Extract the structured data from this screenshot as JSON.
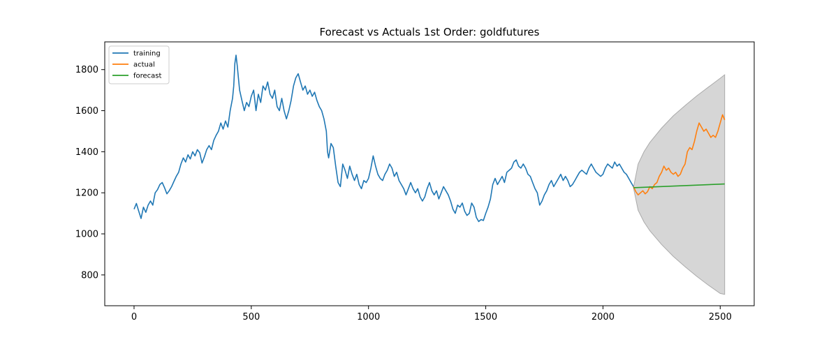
{
  "chart_data": {
    "type": "line",
    "title": "Forecast vs Actuals 1st Order: goldfutures",
    "xlabel": "",
    "ylabel": "",
    "xlim": [
      -125,
      2645
    ],
    "ylim": [
      650,
      1935
    ],
    "x_ticks": [
      0,
      500,
      1000,
      1500,
      2000,
      2500
    ],
    "y_ticks": [
      800,
      1000,
      1200,
      1400,
      1600,
      1800
    ],
    "grid": false,
    "legend_position": "top-left",
    "series": [
      {
        "name": "training",
        "color": "#1f77b4",
        "points": [
          [
            0,
            1120
          ],
          [
            10,
            1148
          ],
          [
            20,
            1110
          ],
          [
            30,
            1075
          ],
          [
            40,
            1130
          ],
          [
            50,
            1105
          ],
          [
            60,
            1140
          ],
          [
            70,
            1160
          ],
          [
            80,
            1140
          ],
          [
            90,
            1200
          ],
          [
            100,
            1215
          ],
          [
            110,
            1240
          ],
          [
            120,
            1250
          ],
          [
            130,
            1225
          ],
          [
            140,
            1195
          ],
          [
            150,
            1210
          ],
          [
            160,
            1230
          ],
          [
            170,
            1255
          ],
          [
            180,
            1280
          ],
          [
            190,
            1300
          ],
          [
            200,
            1340
          ],
          [
            210,
            1370
          ],
          [
            220,
            1350
          ],
          [
            230,
            1385
          ],
          [
            240,
            1365
          ],
          [
            250,
            1400
          ],
          [
            260,
            1380
          ],
          [
            270,
            1410
          ],
          [
            280,
            1395
          ],
          [
            290,
            1345
          ],
          [
            300,
            1375
          ],
          [
            310,
            1410
          ],
          [
            320,
            1430
          ],
          [
            330,
            1410
          ],
          [
            340,
            1455
          ],
          [
            350,
            1480
          ],
          [
            360,
            1500
          ],
          [
            370,
            1540
          ],
          [
            380,
            1510
          ],
          [
            390,
            1550
          ],
          [
            400,
            1520
          ],
          [
            410,
            1600
          ],
          [
            420,
            1660
          ],
          [
            425,
            1720
          ],
          [
            430,
            1830
          ],
          [
            435,
            1870
          ],
          [
            440,
            1820
          ],
          [
            445,
            1760
          ],
          [
            450,
            1700
          ],
          [
            460,
            1650
          ],
          [
            470,
            1600
          ],
          [
            480,
            1640
          ],
          [
            490,
            1620
          ],
          [
            500,
            1670
          ],
          [
            510,
            1700
          ],
          [
            520,
            1600
          ],
          [
            530,
            1680
          ],
          [
            540,
            1640
          ],
          [
            550,
            1720
          ],
          [
            560,
            1700
          ],
          [
            570,
            1740
          ],
          [
            580,
            1680
          ],
          [
            590,
            1660
          ],
          [
            600,
            1700
          ],
          [
            610,
            1620
          ],
          [
            620,
            1600
          ],
          [
            630,
            1660
          ],
          [
            640,
            1600
          ],
          [
            650,
            1560
          ],
          [
            660,
            1600
          ],
          [
            670,
            1650
          ],
          [
            680,
            1720
          ],
          [
            690,
            1760
          ],
          [
            700,
            1780
          ],
          [
            710,
            1740
          ],
          [
            720,
            1700
          ],
          [
            730,
            1720
          ],
          [
            740,
            1680
          ],
          [
            750,
            1700
          ],
          [
            760,
            1670
          ],
          [
            770,
            1690
          ],
          [
            780,
            1650
          ],
          [
            790,
            1620
          ],
          [
            800,
            1600
          ],
          [
            810,
            1560
          ],
          [
            820,
            1500
          ],
          [
            825,
            1400
          ],
          [
            830,
            1370
          ],
          [
            840,
            1440
          ],
          [
            850,
            1420
          ],
          [
            860,
            1330
          ],
          [
            870,
            1250
          ],
          [
            880,
            1230
          ],
          [
            890,
            1340
          ],
          [
            900,
            1310
          ],
          [
            910,
            1270
          ],
          [
            920,
            1330
          ],
          [
            930,
            1290
          ],
          [
            940,
            1260
          ],
          [
            950,
            1290
          ],
          [
            960,
            1240
          ],
          [
            970,
            1220
          ],
          [
            980,
            1260
          ],
          [
            990,
            1250
          ],
          [
            1000,
            1270
          ],
          [
            1010,
            1320
          ],
          [
            1020,
            1380
          ],
          [
            1030,
            1330
          ],
          [
            1040,
            1290
          ],
          [
            1050,
            1270
          ],
          [
            1060,
            1260
          ],
          [
            1070,
            1290
          ],
          [
            1080,
            1310
          ],
          [
            1090,
            1340
          ],
          [
            1100,
            1320
          ],
          [
            1110,
            1280
          ],
          [
            1120,
            1300
          ],
          [
            1130,
            1260
          ],
          [
            1140,
            1240
          ],
          [
            1150,
            1220
          ],
          [
            1160,
            1190
          ],
          [
            1170,
            1220
          ],
          [
            1180,
            1250
          ],
          [
            1190,
            1220
          ],
          [
            1200,
            1200
          ],
          [
            1210,
            1220
          ],
          [
            1220,
            1180
          ],
          [
            1230,
            1160
          ],
          [
            1240,
            1180
          ],
          [
            1250,
            1220
          ],
          [
            1260,
            1250
          ],
          [
            1270,
            1210
          ],
          [
            1280,
            1190
          ],
          [
            1290,
            1210
          ],
          [
            1300,
            1170
          ],
          [
            1310,
            1200
          ],
          [
            1320,
            1230
          ],
          [
            1330,
            1210
          ],
          [
            1340,
            1190
          ],
          [
            1350,
            1160
          ],
          [
            1360,
            1120
          ],
          [
            1370,
            1100
          ],
          [
            1380,
            1140
          ],
          [
            1390,
            1130
          ],
          [
            1400,
            1150
          ],
          [
            1410,
            1110
          ],
          [
            1420,
            1090
          ],
          [
            1430,
            1100
          ],
          [
            1440,
            1150
          ],
          [
            1450,
            1130
          ],
          [
            1460,
            1080
          ],
          [
            1470,
            1060
          ],
          [
            1480,
            1070
          ],
          [
            1490,
            1065
          ],
          [
            1500,
            1100
          ],
          [
            1510,
            1130
          ],
          [
            1520,
            1170
          ],
          [
            1530,
            1240
          ],
          [
            1540,
            1270
          ],
          [
            1550,
            1240
          ],
          [
            1560,
            1260
          ],
          [
            1570,
            1280
          ],
          [
            1580,
            1250
          ],
          [
            1590,
            1300
          ],
          [
            1600,
            1310
          ],
          [
            1610,
            1320
          ],
          [
            1620,
            1350
          ],
          [
            1630,
            1360
          ],
          [
            1640,
            1330
          ],
          [
            1650,
            1320
          ],
          [
            1660,
            1340
          ],
          [
            1670,
            1320
          ],
          [
            1680,
            1290
          ],
          [
            1690,
            1280
          ],
          [
            1700,
            1250
          ],
          [
            1710,
            1220
          ],
          [
            1720,
            1200
          ],
          [
            1730,
            1140
          ],
          [
            1740,
            1160
          ],
          [
            1750,
            1190
          ],
          [
            1760,
            1210
          ],
          [
            1770,
            1240
          ],
          [
            1780,
            1260
          ],
          [
            1790,
            1230
          ],
          [
            1800,
            1250
          ],
          [
            1810,
            1270
          ],
          [
            1820,
            1290
          ],
          [
            1830,
            1260
          ],
          [
            1840,
            1280
          ],
          [
            1850,
            1260
          ],
          [
            1860,
            1230
          ],
          [
            1870,
            1240
          ],
          [
            1880,
            1260
          ],
          [
            1890,
            1280
          ],
          [
            1900,
            1300
          ],
          [
            1910,
            1310
          ],
          [
            1920,
            1300
          ],
          [
            1930,
            1290
          ],
          [
            1940,
            1320
          ],
          [
            1950,
            1340
          ],
          [
            1960,
            1320
          ],
          [
            1970,
            1300
          ],
          [
            1980,
            1290
          ],
          [
            1990,
            1280
          ],
          [
            2000,
            1290
          ],
          [
            2010,
            1320
          ],
          [
            2020,
            1340
          ],
          [
            2030,
            1330
          ],
          [
            2040,
            1320
          ],
          [
            2050,
            1350
          ],
          [
            2060,
            1330
          ],
          [
            2070,
            1340
          ],
          [
            2080,
            1320
          ],
          [
            2090,
            1300
          ],
          [
            2100,
            1290
          ],
          [
            2110,
            1270
          ],
          [
            2120,
            1250
          ],
          [
            2130,
            1230
          ]
        ]
      },
      {
        "name": "actual",
        "color": "#ff7f0e",
        "points": [
          [
            2130,
            1230
          ],
          [
            2140,
            1205
          ],
          [
            2150,
            1190
          ],
          [
            2160,
            1200
          ],
          [
            2170,
            1210
          ],
          [
            2180,
            1195
          ],
          [
            2190,
            1205
          ],
          [
            2200,
            1230
          ],
          [
            2210,
            1220
          ],
          [
            2220,
            1240
          ],
          [
            2230,
            1250
          ],
          [
            2240,
            1280
          ],
          [
            2250,
            1300
          ],
          [
            2260,
            1330
          ],
          [
            2270,
            1310
          ],
          [
            2280,
            1320
          ],
          [
            2290,
            1300
          ],
          [
            2300,
            1290
          ],
          [
            2310,
            1300
          ],
          [
            2320,
            1280
          ],
          [
            2330,
            1290
          ],
          [
            2340,
            1320
          ],
          [
            2350,
            1340
          ],
          [
            2360,
            1400
          ],
          [
            2370,
            1420
          ],
          [
            2380,
            1410
          ],
          [
            2390,
            1450
          ],
          [
            2400,
            1500
          ],
          [
            2410,
            1540
          ],
          [
            2420,
            1520
          ],
          [
            2430,
            1500
          ],
          [
            2440,
            1510
          ],
          [
            2450,
            1490
          ],
          [
            2460,
            1470
          ],
          [
            2470,
            1480
          ],
          [
            2480,
            1470
          ],
          [
            2490,
            1500
          ],
          [
            2500,
            1540
          ],
          [
            2510,
            1580
          ],
          [
            2519,
            1555
          ]
        ]
      },
      {
        "name": "forecast",
        "color": "#2ca02c",
        "points": [
          [
            2130,
            1225
          ],
          [
            2519,
            1243
          ]
        ]
      }
    ],
    "confidence_band": {
      "color": "#d6d6d6",
      "x": [
        2130,
        2150,
        2175,
        2200,
        2250,
        2300,
        2350,
        2400,
        2450,
        2500,
        2519
      ],
      "upper": [
        1225,
        1340,
        1400,
        1445,
        1515,
        1575,
        1625,
        1672,
        1715,
        1758,
        1775
      ],
      "lower": [
        1225,
        1115,
        1058,
        1015,
        948,
        890,
        840,
        793,
        750,
        710,
        705
      ]
    }
  }
}
